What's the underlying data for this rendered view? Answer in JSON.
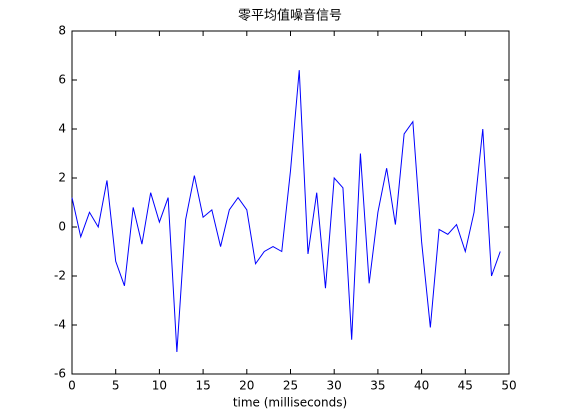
{
  "chart_data": {
    "type": "line",
    "title": "零平均值噪音信号",
    "xlabel": "time (milliseconds)",
    "x": [
      0,
      1,
      2,
      3,
      4,
      5,
      6,
      7,
      8,
      9,
      10,
      11,
      12,
      13,
      14,
      15,
      16,
      17,
      18,
      19,
      20,
      21,
      22,
      23,
      24,
      25,
      26,
      27,
      28,
      29,
      30,
      31,
      32,
      33,
      34,
      35,
      36,
      37,
      38,
      39,
      40,
      41,
      42,
      43,
      44,
      45,
      46,
      47,
      48,
      49
    ],
    "series": [
      {
        "color": "#0000ff",
        "values": [
          1.2,
          -0.4,
          0.6,
          0.0,
          1.9,
          -1.4,
          -2.4,
          0.8,
          -0.7,
          1.4,
          0.2,
          1.2,
          -5.1,
          0.3,
          2.1,
          0.4,
          0.7,
          -0.8,
          0.7,
          1.2,
          0.7,
          -1.5,
          -1.0,
          -0.8,
          -1.0,
          2.3,
          6.4,
          -1.1,
          1.4,
          -2.5,
          2.0,
          1.6,
          -4.6,
          3.0,
          -2.3,
          0.6,
          2.4,
          0.1,
          3.8,
          4.3,
          -0.6,
          -4.1,
          -0.1,
          -0.3,
          0.1,
          -1.0,
          0.6,
          4.0,
          -2.0,
          -1.0
        ]
      }
    ],
    "xlim": [
      0,
      50
    ],
    "xticks": [
      0,
      5,
      10,
      15,
      20,
      25,
      30,
      35,
      40,
      45,
      50
    ],
    "ylim": [
      -6,
      8
    ],
    "yticks": [
      -6,
      -4,
      -2,
      0,
      2,
      4,
      6,
      8
    ]
  }
}
